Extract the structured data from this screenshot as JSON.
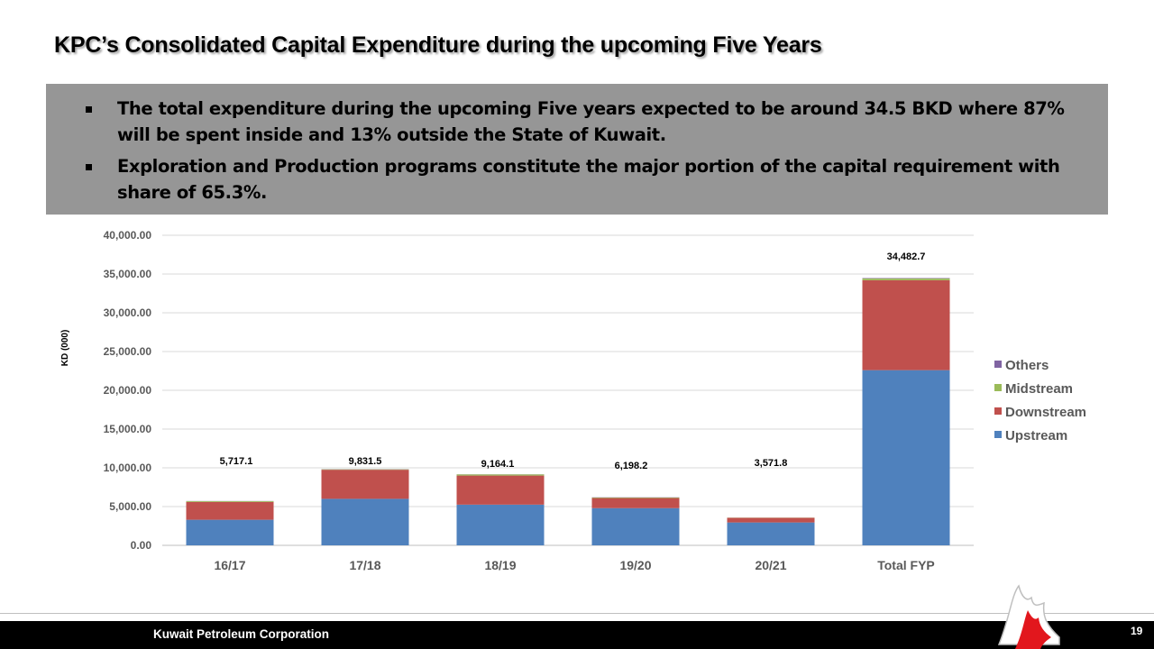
{
  "slide": {
    "title": "KPC’s Consolidated Capital Expenditure during the upcoming Five Years",
    "bullets": [
      "The total expenditure during the upcoming Five years expected to be around 34.5 BKD where 87% will be spent inside and 13% outside the State of Kuwait.",
      "Exploration and Production programs constitute the major portion of the  capital requirement with share of 65.3%."
    ]
  },
  "footer": {
    "organization": "Kuwait Petroleum Corporation",
    "page_number": "19"
  },
  "chart_data": {
    "type": "bar",
    "stacked": true,
    "categories": [
      "16/17",
      "17/18",
      "18/19",
      "19/20",
      "20/21",
      "Total FYP"
    ],
    "ylabel": "KD (000)",
    "xlabel": "",
    "ylim": [
      0,
      40000
    ],
    "yticks": [
      "0.00",
      "5,000.00",
      "10,000.00",
      "15,000.00",
      "20,000.00",
      "25,000.00",
      "30,000.00",
      "35,000.00",
      "40,000.00"
    ],
    "ytick_values": [
      0,
      5000,
      10000,
      15000,
      20000,
      25000,
      30000,
      35000,
      40000
    ],
    "grid": true,
    "legend_position": "right",
    "series": [
      {
        "name": "Upstream",
        "color": "#4f81bd",
        "values": [
          3300,
          6000,
          5250,
          4800,
          2950,
          22600
        ]
      },
      {
        "name": "Downstream",
        "color": "#c0504d",
        "values": [
          2300,
          3750,
          3750,
          1300,
          600,
          11600
        ]
      },
      {
        "name": "Midstream",
        "color": "#9bbb59",
        "values": [
          100,
          60,
          150,
          70,
          20,
          230
        ]
      },
      {
        "name": "Others",
        "color": "#8064a2",
        "values": [
          17,
          21,
          14,
          28,
          2,
          53
        ]
      }
    ],
    "totals": [
      5717.1,
      9831.5,
      9164.1,
      6198.2,
      3571.8,
      34482.7
    ],
    "total_labels": [
      "5,717.1",
      "9,831.5",
      "9,164.1",
      "6,198.2",
      "3,571.8",
      "34,482.7"
    ]
  }
}
